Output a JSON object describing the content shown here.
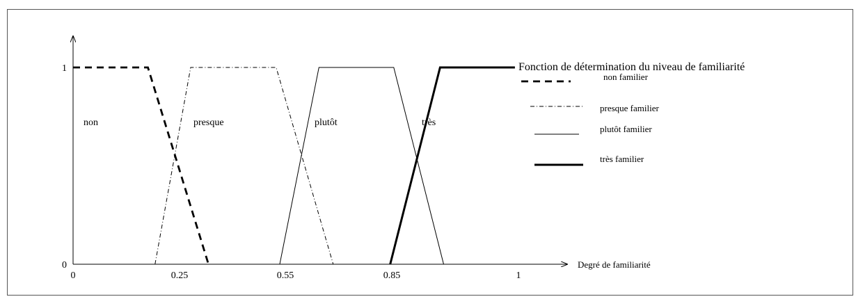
{
  "chart_data": {
    "type": "line",
    "title": "Fonction de détermination du niveau de familiarité",
    "xlabel": "Degré de familiarité",
    "ylabel": "",
    "xlim": [
      0,
      1.3
    ],
    "ylim": [
      0,
      1.1
    ],
    "x_ticks": [
      "0",
      "0.25",
      "0.55",
      "0.85",
      "1"
    ],
    "y_ticks": [
      "0",
      "1"
    ],
    "grid": false,
    "legend_position": "right",
    "series": [
      {
        "name": "non familier",
        "region_label": "non",
        "style": "dashed-thick",
        "points": [
          [
            0,
            1
          ],
          [
            0.21,
            1
          ],
          [
            0.38,
            0
          ]
        ]
      },
      {
        "name": "presque familier",
        "region_label": "presque",
        "style": "dashdot-thin",
        "points": [
          [
            0.23,
            0
          ],
          [
            0.33,
            1
          ],
          [
            0.57,
            1
          ],
          [
            0.73,
            0
          ]
        ]
      },
      {
        "name": "plutôt familier",
        "region_label": "plutôt",
        "style": "solid-thin",
        "points": [
          [
            0.58,
            0
          ],
          [
            0.69,
            1
          ],
          [
            0.9,
            1
          ],
          [
            1.04,
            0
          ]
        ]
      },
      {
        "name": "très familier",
        "region_label": "très",
        "style": "solid-thick",
        "points": [
          [
            0.89,
            0
          ],
          [
            1.03,
            1
          ],
          [
            1.24,
            1
          ]
        ]
      }
    ]
  }
}
